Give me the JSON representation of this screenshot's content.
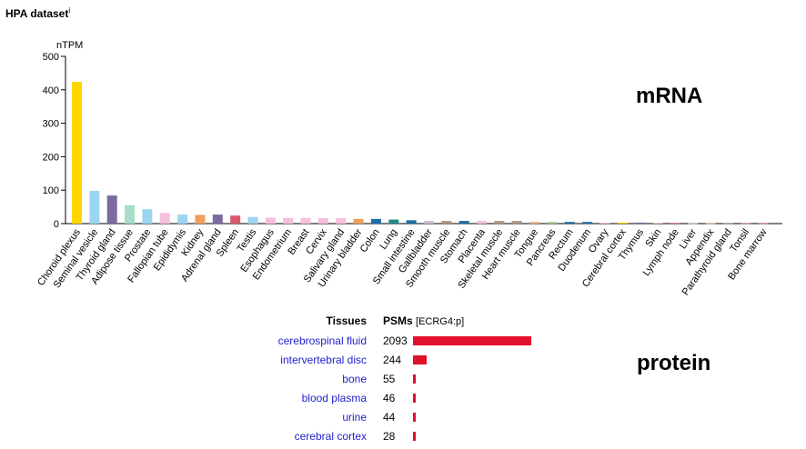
{
  "header": {
    "title": "HPA dataset",
    "info_mark": "i"
  },
  "labels": {
    "mrna": "mRNA",
    "protein": "protein"
  },
  "chart_data": [
    {
      "type": "bar",
      "ylabel": "nTPM",
      "ylim": [
        0,
        500
      ],
      "yticks": [
        0,
        100,
        200,
        300,
        400,
        500
      ],
      "categories": [
        "Choroid plexus",
        "Seminal vesicle",
        "Thyroid gland",
        "Adipose tissue",
        "Prostate",
        "Fallopian tube",
        "Epididymis",
        "Kidney",
        "Adrenal gland",
        "Spleen",
        "Testis",
        "Esophagus",
        "Endometrium",
        "Breast",
        "Cervix",
        "Salivary gland",
        "Urinary bladder",
        "Colon",
        "Lung",
        "Small intestine",
        "Gallbladder",
        "Smooth muscle",
        "Stomach",
        "Placenta",
        "Skeletal muscle",
        "Heart muscle",
        "Tongue",
        "Pancreas",
        "Rectum",
        "Duodenum",
        "Ovary",
        "Cerebral cortex",
        "Thymus",
        "Skin",
        "Lymph node",
        "Liver",
        "Appendix",
        "Parathyroid gland",
        "Tonsil",
        "Bone marrow"
      ],
      "values": [
        424,
        98,
        84,
        55,
        43,
        32,
        27,
        26,
        27,
        24,
        20,
        18,
        17,
        17,
        16,
        16,
        14,
        14,
        12,
        10,
        8,
        8,
        8,
        8,
        8,
        8,
        5,
        5,
        5,
        5,
        3,
        3,
        3,
        2,
        2,
        1,
        1,
        1,
        1,
        1
      ],
      "colors": [
        "#ffd700",
        "#9dd4f0",
        "#7d6aa0",
        "#a7dcc9",
        "#9dd4f0",
        "#f6c0dc",
        "#9dd4f0",
        "#f0a05a",
        "#7d6aa0",
        "#d9596c",
        "#9dd4f0",
        "#f6c0dc",
        "#f6c0dc",
        "#f6c0dc",
        "#f6c0dc",
        "#f6c0dc",
        "#f0a05a",
        "#1f6ea8",
        "#1f8a8a",
        "#1f6ea8",
        "#c8c0e0",
        "#b09880",
        "#1f6ea8",
        "#f6c0dc",
        "#b09880",
        "#b09880",
        "#f0b080",
        "#a8c890",
        "#1f6ea8",
        "#1f6ea8",
        "#f6c0dc",
        "#ffd700",
        "#7d6aa0",
        "#e8b0b0",
        "#d9596c",
        "#c8c0e0",
        "#f0b080",
        "#7d6aa0",
        "#d9596c",
        "#d9596c"
      ]
    },
    {
      "type": "bar",
      "orientation": "horizontal",
      "headers": {
        "tissues": "Tissues",
        "psms": "PSMs",
        "psms_sub": "[ECRG4:p]"
      },
      "categories": [
        "cerebrospinal fluid",
        "intervertebral disc",
        "bone",
        "blood plasma",
        "urine",
        "cerebral cortex"
      ],
      "values": [
        2093,
        244,
        55,
        46,
        44,
        28
      ],
      "color": "#e0112b"
    }
  ]
}
